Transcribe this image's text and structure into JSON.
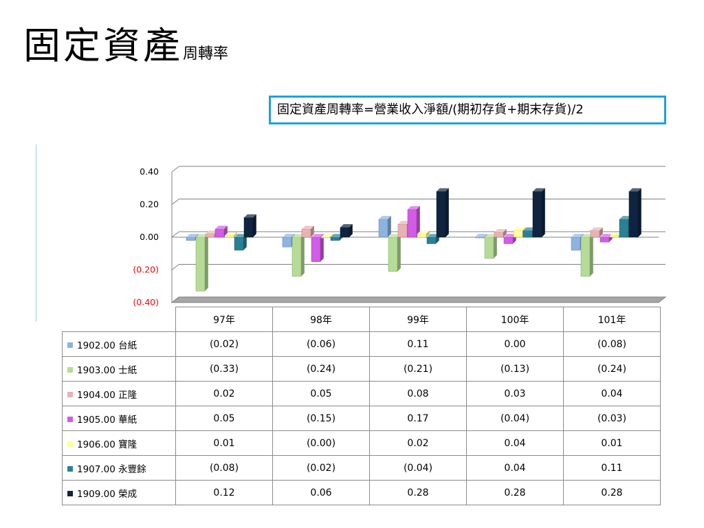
{
  "slide": {
    "title_main": "固定資產",
    "title_sub": "周轉率",
    "formula": "固定資產周轉率=營業收入淨額/(期初存貨+期末存貨)/2"
  },
  "chart_data": {
    "type": "bar",
    "categories": [
      "97年",
      "98年",
      "99年",
      "100年",
      "101年"
    ],
    "y_tick_labels": [
      "0.40",
      "0.20",
      "0.00",
      "(0.20)",
      "(0.40)"
    ],
    "ylim": [
      -0.4,
      0.4
    ],
    "grid": true,
    "negative_tick_color": "#ff0000",
    "series": [
      {
        "name": "1902.00 台紙",
        "color": "#8db3e2",
        "values": [
          -0.02,
          -0.06,
          0.11,
          0.0,
          -0.08
        ],
        "labels": [
          "(0.02)",
          "(0.06)",
          "0.11",
          "0.00",
          "(0.08)"
        ]
      },
      {
        "name": "1903.00 士紙",
        "color": "#b5dc96",
        "values": [
          -0.33,
          -0.24,
          -0.21,
          -0.13,
          -0.24
        ],
        "labels": [
          "(0.33)",
          "(0.24)",
          "(0.21)",
          "(0.13)",
          "(0.24)"
        ]
      },
      {
        "name": "1904.00 正隆",
        "color": "#e9b2b2",
        "values": [
          0.02,
          0.05,
          0.08,
          0.03,
          0.04
        ],
        "labels": [
          "0.02",
          "0.05",
          "0.08",
          "0.03",
          "0.04"
        ]
      },
      {
        "name": "1905.00 華紙",
        "color": "#d25ce6",
        "values": [
          0.05,
          -0.15,
          0.17,
          -0.04,
          -0.03
        ],
        "labels": [
          "0.05",
          "(0.15)",
          "0.17",
          "(0.04)",
          "(0.03)"
        ]
      },
      {
        "name": "1906.00 寶隆",
        "color": "#ffff99",
        "values": [
          0.01,
          -0.0,
          0.02,
          0.04,
          0.01
        ],
        "labels": [
          "0.01",
          "(0.00)",
          "0.02",
          "0.04",
          "0.01"
        ]
      },
      {
        "name": "1907.00 永豐餘",
        "color": "#2a8196",
        "values": [
          -0.08,
          -0.02,
          -0.04,
          0.04,
          0.11
        ],
        "labels": [
          "(0.08)",
          "(0.02)",
          "(0.04)",
          "0.04",
          "0.11"
        ]
      },
      {
        "name": "1909.00 榮成",
        "color": "#0e2440",
        "values": [
          0.12,
          0.06,
          0.28,
          0.28,
          0.28
        ],
        "labels": [
          "0.12",
          "0.06",
          "0.28",
          "0.28",
          "0.28"
        ]
      }
    ]
  }
}
